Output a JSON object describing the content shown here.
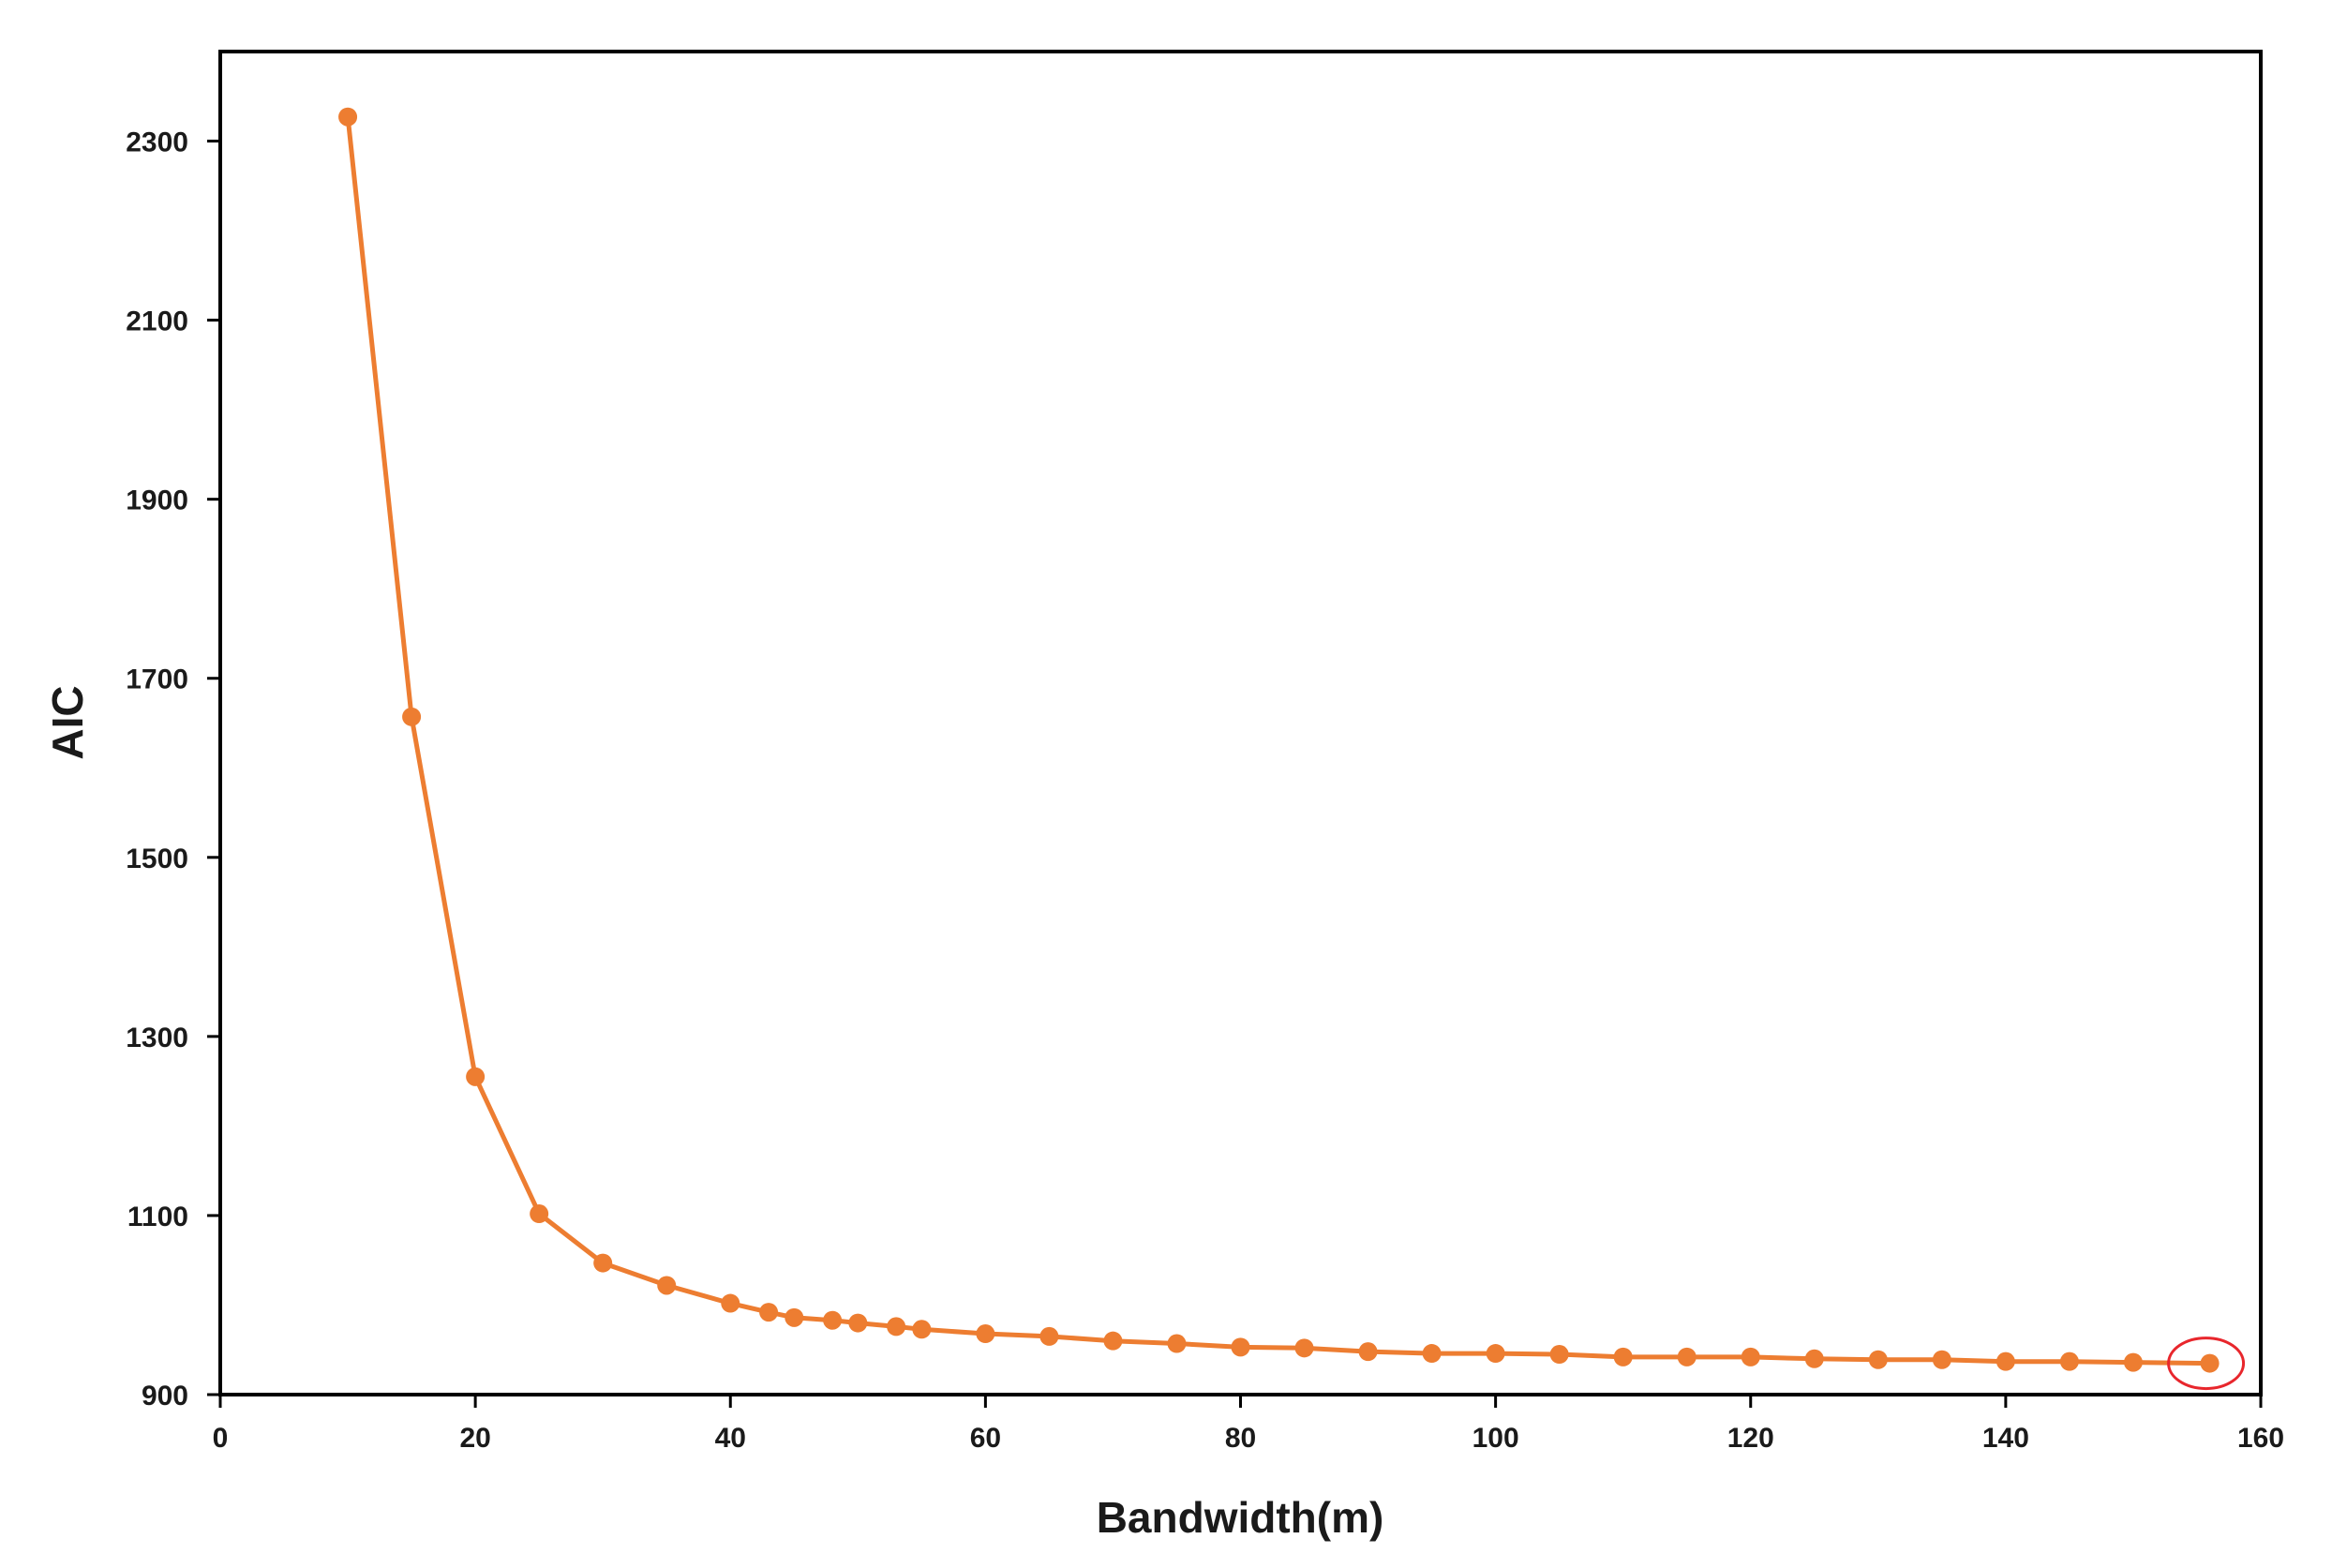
{
  "chart_data": {
    "type": "line",
    "title": "",
    "xlabel": "Bandwidth(m)",
    "ylabel": "AIC",
    "xlim": [
      0,
      160
    ],
    "ylim": [
      900,
      2400
    ],
    "xticks": [
      0,
      20,
      40,
      60,
      80,
      100,
      120,
      140,
      160
    ],
    "yticks": [
      900,
      1100,
      1300,
      1500,
      1700,
      1900,
      2100,
      2300
    ],
    "grid": false,
    "legend": "none",
    "series": [
      {
        "color": "#ED7D31",
        "x": [
          10,
          15,
          20,
          25,
          30,
          35,
          40,
          43,
          45,
          48,
          50,
          53,
          55,
          60,
          65,
          70,
          75,
          80,
          85,
          90,
          95,
          100,
          105,
          110,
          115,
          120,
          125,
          130,
          135,
          140,
          145,
          150,
          156
        ],
        "y": [
          2327,
          1657,
          1255,
          1102,
          1047,
          1022,
          1002,
          992,
          986,
          983,
          980,
          976,
          973,
          968,
          965,
          960,
          957,
          953,
          952,
          948,
          946,
          946,
          945,
          942,
          942,
          942,
          940,
          939,
          939,
          937,
          937,
          936,
          935
        ]
      }
    ],
    "highlight": {
      "x": 156,
      "y": 935,
      "color": "#E8262C"
    }
  }
}
